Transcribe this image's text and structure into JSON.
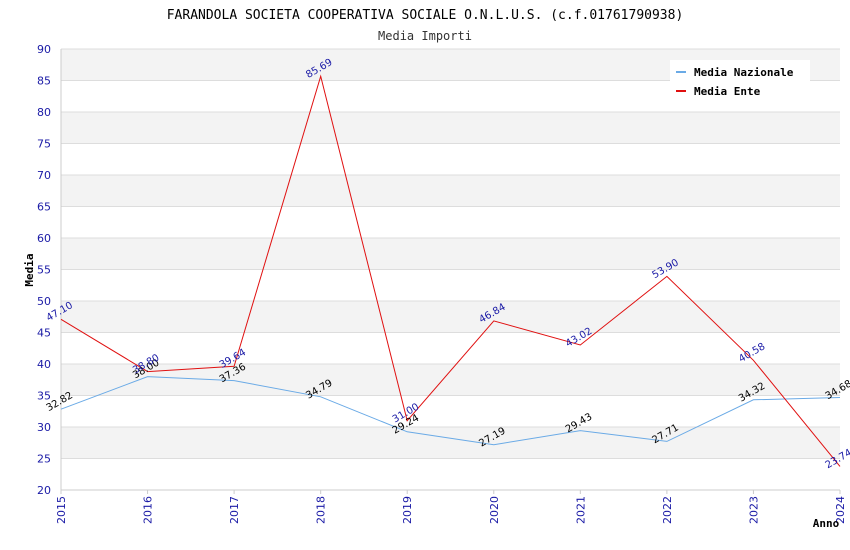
{
  "chart_data": {
    "type": "line",
    "title": "FARANDOLA SOCIETA COOPERATIVA SOCIALE O.N.L.U.S. (c.f.01761790938)",
    "subtitle": "Media Importi",
    "xlabel": "Anno",
    "ylabel": "Media",
    "ylim": [
      20,
      90
    ],
    "yticks": [
      "20",
      "25",
      "30",
      "35",
      "40",
      "45",
      "50",
      "55",
      "60",
      "65",
      "70",
      "75",
      "80",
      "85",
      "90"
    ],
    "x": [
      "2015",
      "2016",
      "2017",
      "2018",
      "2019",
      "2020",
      "2021",
      "2022",
      "2023",
      "2024"
    ],
    "grid": "horizontal",
    "legend_position": "top-right",
    "series": [
      {
        "name": "Media Nazionale",
        "color": "#6aaae6",
        "values": [
          32.82,
          38.0,
          37.36,
          34.79,
          29.24,
          27.19,
          29.43,
          27.71,
          34.32,
          34.68
        ],
        "labels": [
          "32.82",
          "38.00",
          "37.36",
          "34.79",
          "29.24",
          "27.19",
          "29.43",
          "27.71",
          "34.32",
          "34.68"
        ]
      },
      {
        "name": "Media Ente",
        "color": "#e01010",
        "values": [
          47.1,
          38.8,
          39.64,
          85.69,
          31.0,
          46.84,
          43.02,
          53.9,
          40.58,
          23.74
        ],
        "labels": [
          "47.10",
          "38.80",
          "39.64",
          "85.69",
          "31.00",
          "46.84",
          "43.02",
          "53.90",
          "40.58",
          "23.74"
        ]
      }
    ]
  }
}
